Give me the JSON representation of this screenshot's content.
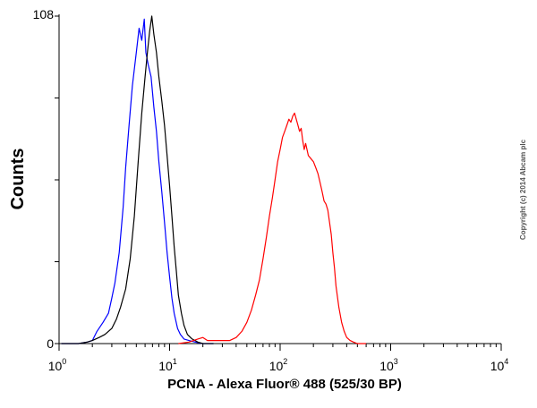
{
  "chart_data": {
    "type": "line",
    "title": "",
    "xlabel": "PCNA - Alexa Fluor® 488 (525/30 BP)",
    "ylabel": "Counts",
    "x_scale": "log",
    "xlim": [
      1,
      10000
    ],
    "ylim": [
      0,
      108
    ],
    "x_ticks": [
      {
        "base": "10",
        "exp": "0"
      },
      {
        "base": "10",
        "exp": "1"
      },
      {
        "base": "10",
        "exp": "2"
      },
      {
        "base": "10",
        "exp": "3"
      },
      {
        "base": "10",
        "exp": "4"
      }
    ],
    "y_ticks": [
      "0",
      "108"
    ],
    "copyright": "Copyright (c) 2014 Abcam plc",
    "series": [
      {
        "color": "#0000ff",
        "x": [
          1.05,
          1.5,
          1.8,
          2.0,
          2.2,
          2.5,
          2.8,
          3.0,
          3.2,
          3.5,
          3.8,
          4.0,
          4.3,
          4.6,
          5.0,
          5.3,
          5.6,
          5.9,
          6.1,
          6.4,
          6.8,
          7.2,
          7.6,
          8.0,
          8.5,
          9.0,
          9.5,
          10.0,
          10.5,
          11.0,
          11.8,
          12.5,
          13.5,
          15.0,
          17.0,
          20.0,
          25.0
        ],
        "y": [
          0,
          0,
          0.5,
          1,
          4,
          7,
          10,
          15,
          20,
          30,
          45,
          58,
          72,
          85,
          96,
          104,
          100,
          107,
          96,
          92,
          88,
          78,
          70,
          60,
          50,
          40,
          30,
          22,
          15,
          10,
          5,
          3,
          1.5,
          1,
          0.5,
          0,
          0
        ]
      },
      {
        "color": "#000000",
        "x": [
          1.05,
          1.5,
          1.8,
          2.0,
          2.3,
          2.6,
          3.0,
          3.3,
          3.6,
          4.0,
          4.4,
          4.8,
          5.2,
          5.6,
          6.0,
          6.3,
          6.6,
          6.9,
          7.2,
          7.6,
          8.0,
          8.5,
          9.0,
          9.5,
          10.0,
          10.5,
          11.0,
          11.5,
          12.0,
          12.8,
          13.5,
          14.5,
          16.0,
          18.0,
          20.0,
          25.0
        ],
        "y": [
          0,
          0,
          0.5,
          1,
          2,
          3,
          5,
          8,
          12,
          18,
          28,
          42,
          60,
          76,
          88,
          96,
          103,
          108,
          102,
          96,
          88,
          80,
          72,
          62,
          52,
          42,
          32,
          24,
          16,
          10,
          6,
          3,
          1.5,
          0.5,
          0,
          0
        ]
      },
      {
        "color": "#ff0000",
        "x": [
          12,
          15,
          18,
          20,
          22,
          25,
          30,
          35,
          40,
          45,
          50,
          55,
          60,
          65,
          70,
          75,
          80,
          85,
          90,
          95,
          100,
          105,
          110,
          115,
          120,
          125,
          130,
          135,
          140,
          145,
          150,
          155,
          160,
          165,
          170,
          180,
          190,
          200,
          210,
          220,
          230,
          240,
          250,
          260,
          270,
          280,
          290,
          300,
          310,
          320,
          340,
          360,
          380,
          400,
          430,
          460,
          500,
          550,
          600
        ],
        "y": [
          0,
          0.5,
          1.5,
          2,
          1,
          1,
          1,
          1,
          2,
          4,
          7,
          11,
          16,
          21,
          28,
          35,
          42,
          48,
          54,
          60,
          64,
          68,
          70,
          72,
          74,
          73,
          75,
          76,
          74,
          72,
          70,
          71,
          67,
          64,
          66,
          62,
          61,
          60,
          58,
          56,
          53,
          50,
          47,
          46,
          44,
          40,
          36,
          30,
          25,
          19,
          12,
          7,
          4,
          2,
          1,
          0.5,
          0,
          0,
          0
        ]
      }
    ]
  }
}
